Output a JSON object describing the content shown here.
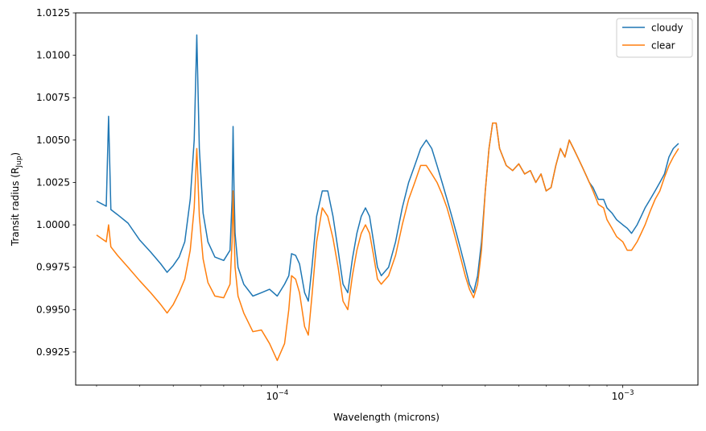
{
  "chart_data": {
    "type": "line",
    "xlabel": "Wavelength (microns)",
    "ylabel_main": "Transit radius (R",
    "ylabel_sub": "Jup",
    "ylabel_close": ")",
    "x_scale": "log",
    "xlim": [
      2.61e-05,
      0.00165
    ],
    "ylim": [
      0.99055,
      1.0125
    ],
    "y_ticks": [
      0.9925,
      0.995,
      0.9975,
      1.0,
      1.0025,
      1.005,
      1.0075,
      1.01,
      1.0125
    ],
    "y_tick_labels": [
      "0.9925",
      "0.9950",
      "0.9975",
      "1.0000",
      "1.0025",
      "1.0050",
      "1.0075",
      "1.0100",
      "1.0125"
    ],
    "x_ticks": [
      0.0001,
      0.001
    ],
    "x_tick_label_base": [
      "10",
      "10"
    ],
    "x_tick_label_exp": [
      "−4",
      "−3"
    ],
    "grid": false,
    "legend_placement": "top-right",
    "series": [
      {
        "name": "cloudy",
        "color": "#1f77b4",
        "x": [
          3e-05,
          3.2e-05,
          3.25e-05,
          3.3e-05,
          3.45e-05,
          3.7e-05,
          4e-05,
          4.3e-05,
          4.6e-05,
          4.8e-05,
          5e-05,
          5.2e-05,
          5.4e-05,
          5.6e-05,
          5.75e-05,
          5.85e-05,
          5.95e-05,
          6.1e-05,
          6.3e-05,
          6.6e-05,
          7e-05,
          7.3e-05,
          7.4e-05,
          7.45e-05,
          7.5e-05,
          7.55e-05,
          7.7e-05,
          8e-05,
          8.5e-05,
          9e-05,
          9.5e-05,
          0.0001,
          0.000105,
          0.000108,
          0.00011,
          0.000113,
          0.000116,
          0.00012,
          0.000123,
          0.000126,
          0.00013,
          0.000135,
          0.00014,
          0.000145,
          0.00015,
          0.000155,
          0.00016,
          0.000165,
          0.00017,
          0.000175,
          0.00018,
          0.000185,
          0.00019,
          0.000195,
          0.0002,
          0.00021,
          0.00022,
          0.00023,
          0.00024,
          0.00025,
          0.00026,
          0.00027,
          0.00028,
          0.00029,
          0.0003,
          0.00031,
          0.00032,
          0.00033,
          0.00034,
          0.00035,
          0.00036,
          0.00037,
          0.00038,
          0.00039,
          0.0004,
          0.00041,
          0.00042,
          0.00043,
          0.00044,
          0.00046,
          0.00048,
          0.0005,
          0.00052,
          0.00054,
          0.00056,
          0.00058,
          0.0006,
          0.00062,
          0.00064,
          0.00066,
          0.00068,
          0.0007,
          0.00072,
          0.00074,
          0.00076,
          0.00078,
          0.0008,
          0.00082,
          0.00085,
          0.00088,
          0.0009,
          0.00093,
          0.00096,
          0.001,
          0.00103,
          0.00106,
          0.0011,
          0.00113,
          0.00116,
          0.0012,
          0.00124,
          0.00128,
          0.00132,
          0.00136,
          0.0014,
          0.00145
        ],
        "y": [
          1.0014,
          1.0011,
          1.0064,
          1.0009,
          1.0006,
          1.0001,
          0.9991,
          0.9984,
          0.9977,
          0.9972,
          0.9976,
          0.9981,
          0.999,
          1.0015,
          1.005,
          1.0112,
          1.0045,
          1.0007,
          0.999,
          0.9981,
          0.9979,
          0.9985,
          1.0015,
          1.0058,
          1.002,
          0.9995,
          0.9975,
          0.9965,
          0.9958,
          0.996,
          0.9962,
          0.9958,
          0.9965,
          0.997,
          0.9983,
          0.9982,
          0.9977,
          0.996,
          0.9955,
          0.9975,
          1.0005,
          1.002,
          1.002,
          1.0005,
          0.9985,
          0.9965,
          0.996,
          0.998,
          0.9995,
          1.0005,
          1.001,
          1.0005,
          0.999,
          0.9975,
          0.997,
          0.9975,
          0.999,
          1.001,
          1.0025,
          1.0035,
          1.0045,
          1.005,
          1.0045,
          1.0035,
          1.0025,
          1.0015,
          1.0005,
          0.9995,
          0.9985,
          0.9975,
          0.9965,
          0.996,
          0.997,
          0.999,
          1.002,
          1.0045,
          1.006,
          1.006,
          1.0045,
          1.0035,
          1.0032,
          1.0036,
          1.003,
          1.0032,
          1.0025,
          1.003,
          1.002,
          1.0022,
          1.0035,
          1.0045,
          1.004,
          1.005,
          1.0045,
          1.004,
          1.0035,
          1.003,
          1.0025,
          1.0022,
          1.0015,
          1.0015,
          1.001,
          1.0007,
          1.0003,
          1.0,
          0.9998,
          0.9995,
          1.0,
          1.0005,
          1.001,
          1.0015,
          1.002,
          1.0025,
          1.003,
          1.004,
          1.0045,
          1.0048
        ]
      },
      {
        "name": "clear",
        "color": "#ff7f0e",
        "x": [
          3e-05,
          3.2e-05,
          3.25e-05,
          3.3e-05,
          3.45e-05,
          3.7e-05,
          4e-05,
          4.3e-05,
          4.6e-05,
          4.8e-05,
          5e-05,
          5.2e-05,
          5.4e-05,
          5.6e-05,
          5.75e-05,
          5.85e-05,
          5.95e-05,
          6.1e-05,
          6.3e-05,
          6.6e-05,
          7e-05,
          7.3e-05,
          7.4e-05,
          7.45e-05,
          7.5e-05,
          7.55e-05,
          7.7e-05,
          8e-05,
          8.5e-05,
          9e-05,
          9.5e-05,
          0.0001,
          0.000105,
          0.000108,
          0.00011,
          0.000113,
          0.000116,
          0.00012,
          0.000123,
          0.000126,
          0.00013,
          0.000135,
          0.00014,
          0.000145,
          0.00015,
          0.000155,
          0.00016,
          0.000165,
          0.00017,
          0.000175,
          0.00018,
          0.000185,
          0.00019,
          0.000195,
          0.0002,
          0.00021,
          0.00022,
          0.00023,
          0.00024,
          0.00025,
          0.00026,
          0.00027,
          0.00028,
          0.00029,
          0.0003,
          0.00031,
          0.00032,
          0.00033,
          0.00034,
          0.00035,
          0.00036,
          0.00037,
          0.00038,
          0.00039,
          0.0004,
          0.00041,
          0.00042,
          0.00043,
          0.00044,
          0.00046,
          0.00048,
          0.0005,
          0.00052,
          0.00054,
          0.00056,
          0.00058,
          0.0006,
          0.00062,
          0.00064,
          0.00066,
          0.00068,
          0.0007,
          0.00072,
          0.00074,
          0.00076,
          0.00078,
          0.0008,
          0.00082,
          0.00085,
          0.00088,
          0.0009,
          0.00093,
          0.00096,
          0.001,
          0.00103,
          0.00106,
          0.0011,
          0.00113,
          0.00116,
          0.0012,
          0.00124,
          0.00128,
          0.00132,
          0.00136,
          0.0014,
          0.00145
        ],
        "y": [
          0.9994,
          0.999,
          1.0,
          0.9987,
          0.9982,
          0.9975,
          0.9967,
          0.996,
          0.9953,
          0.9948,
          0.9953,
          0.996,
          0.9968,
          0.9985,
          1.001,
          1.0045,
          1.0005,
          0.998,
          0.9966,
          0.9958,
          0.9957,
          0.9965,
          0.999,
          1.002,
          0.9995,
          0.9975,
          0.9958,
          0.9948,
          0.9937,
          0.9938,
          0.993,
          0.992,
          0.993,
          0.995,
          0.997,
          0.9968,
          0.996,
          0.994,
          0.9935,
          0.9958,
          0.999,
          1.001,
          1.0005,
          0.9992,
          0.9975,
          0.9955,
          0.995,
          0.997,
          0.9985,
          0.9995,
          1.0,
          0.9995,
          0.9982,
          0.9968,
          0.9965,
          0.997,
          0.9982,
          1.0,
          1.0015,
          1.0025,
          1.0035,
          1.0035,
          1.003,
          1.0025,
          1.0018,
          1.001,
          1.0,
          0.999,
          0.998,
          0.997,
          0.9962,
          0.9957,
          0.9965,
          0.9985,
          1.002,
          1.0045,
          1.006,
          1.006,
          1.0045,
          1.0035,
          1.0032,
          1.0036,
          1.003,
          1.0032,
          1.0025,
          1.003,
          1.002,
          1.0022,
          1.0035,
          1.0045,
          1.004,
          1.005,
          1.0045,
          1.004,
          1.0035,
          1.003,
          1.0025,
          1.002,
          1.0012,
          1.001,
          1.0003,
          0.9998,
          0.9993,
          0.999,
          0.9985,
          0.9985,
          0.999,
          0.9995,
          1.0,
          1.0008,
          1.0015,
          1.002,
          1.0028,
          1.0035,
          1.004,
          1.0045
        ]
      }
    ]
  }
}
